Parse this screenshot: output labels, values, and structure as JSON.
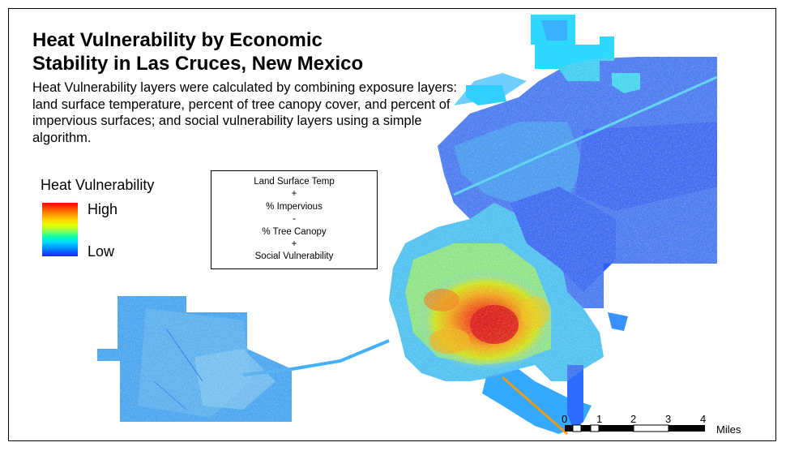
{
  "title": {
    "line1": "Heat Vulnerability by Economic",
    "line2": "Stability in Las Cruces, New Mexico"
  },
  "subtitle": "Heat Vulnerability layers were calculated by combining exposure layers: land surface temperature, percent of tree canopy cover, and percent of impervious surfaces; and social vulnerability layers using a simple algorithm.",
  "legend": {
    "title": "Heat Vulnerability",
    "high_label": "High",
    "low_label": "Low",
    "ramp_colors": [
      "#ff0000",
      "#ff7a00",
      "#ffd400",
      "#e4ff00",
      "#7dff5a",
      "#00ffb4",
      "#00d8ff",
      "#0080ff",
      "#2020ff"
    ]
  },
  "formula": {
    "lines": [
      "Land Surface Temp",
      "+",
      "% Impervious",
      "-",
      "% Tree Canopy",
      "+",
      "Social Vulnerability"
    ]
  },
  "scale_bar": {
    "ticks": [
      "0",
      "1",
      "2",
      "3",
      "4"
    ],
    "unit": "Miles"
  }
}
